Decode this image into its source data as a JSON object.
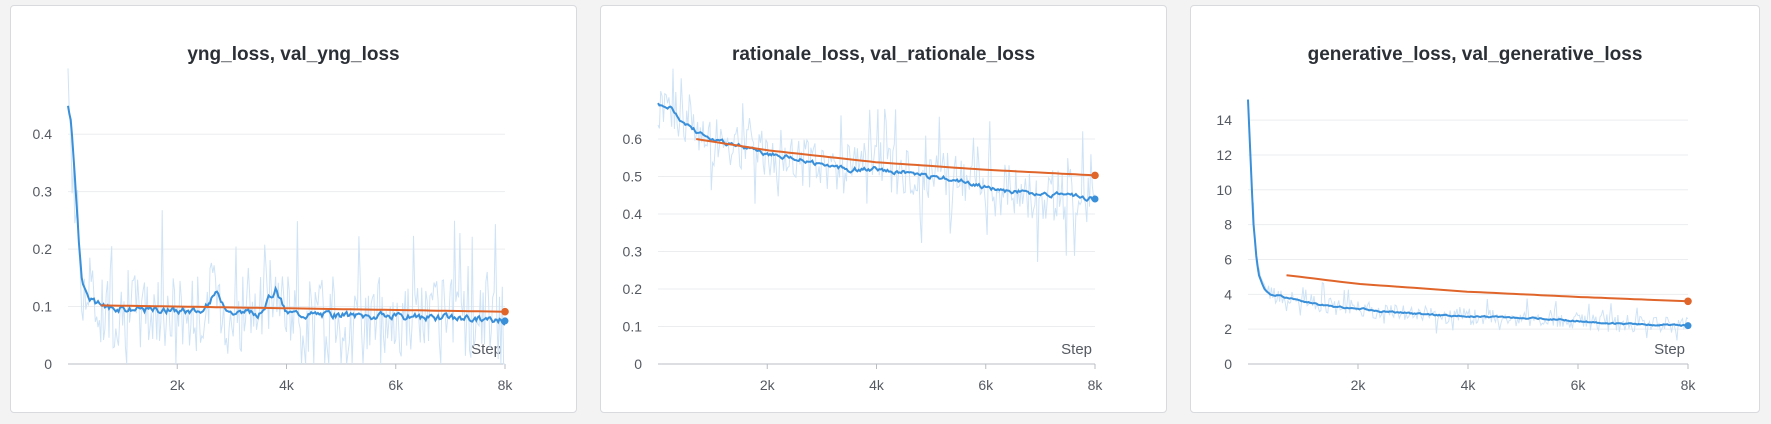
{
  "colors": {
    "train": "#3a8fd9",
    "train_raw": "#cfe3f6",
    "val": "#e0652b",
    "grid": "#ebedef",
    "axis": "#b9bdc3"
  },
  "chart_data": [
    {
      "type": "line",
      "title": "yng_loss, val_yng_loss",
      "xlabel": "Step",
      "xlim": [
        0,
        8000
      ],
      "ylim": [
        0,
        0.47
      ],
      "xticks": [
        {
          "v": 2000,
          "label": "2k"
        },
        {
          "v": 4000,
          "label": "4k"
        },
        {
          "v": 6000,
          "label": "6k"
        },
        {
          "v": 8000,
          "label": "8k"
        }
      ],
      "yticks": [
        {
          "v": 0,
          "label": "0"
        },
        {
          "v": 0.1,
          "label": "0.1"
        },
        {
          "v": 0.2,
          "label": "0.2"
        },
        {
          "v": 0.3,
          "label": "0.3"
        },
        {
          "v": 0.4,
          "label": "0.4"
        }
      ],
      "grid": true,
      "series": [
        {
          "role": "train",
          "x": [
            0,
            50,
            100,
            150,
            200,
            250,
            300,
            400,
            500,
            700,
            900,
            1200,
            1500,
            2000,
            2500,
            2700,
            3000,
            3500,
            3800,
            4000,
            4500,
            5000,
            5500,
            6000,
            6500,
            7000,
            7500,
            8000
          ],
          "y": [
            0.46,
            0.43,
            0.36,
            0.29,
            0.21,
            0.15,
            0.13,
            0.115,
            0.105,
            0.1,
            0.097,
            0.096,
            0.095,
            0.093,
            0.092,
            0.125,
            0.09,
            0.088,
            0.13,
            0.089,
            0.087,
            0.085,
            0.084,
            0.082,
            0.081,
            0.08,
            0.079,
            0.075
          ],
          "raw_spread": 0.07
        },
        {
          "role": "val",
          "x": [
            600,
            2000,
            4000,
            6000,
            8000
          ],
          "y": [
            0.102,
            0.1,
            0.097,
            0.094,
            0.091
          ]
        }
      ]
    },
    {
      "type": "line",
      "title": "rationale_loss, val_rationale_loss",
      "xlabel": "Step",
      "xlim": [
        0,
        8000
      ],
      "ylim": [
        0,
        0.72
      ],
      "xticks": [
        {
          "v": 2000,
          "label": "2k"
        },
        {
          "v": 4000,
          "label": "4k"
        },
        {
          "v": 6000,
          "label": "6k"
        },
        {
          "v": 8000,
          "label": "8k"
        }
      ],
      "yticks": [
        {
          "v": 0,
          "label": "0"
        },
        {
          "v": 0.1,
          "label": "0.1"
        },
        {
          "v": 0.2,
          "label": "0.2"
        },
        {
          "v": 0.3,
          "label": "0.3"
        },
        {
          "v": 0.4,
          "label": "0.4"
        },
        {
          "v": 0.5,
          "label": "0.5"
        },
        {
          "v": 0.6,
          "label": "0.6"
        }
      ],
      "grid": true,
      "series": [
        {
          "role": "train",
          "x": [
            0,
            200,
            400,
            700,
            1000,
            1500,
            2000,
            2500,
            3000,
            3500,
            4000,
            4500,
            5000,
            5500,
            6000,
            6500,
            7000,
            7500,
            8000
          ],
          "y": [
            0.69,
            0.69,
            0.65,
            0.62,
            0.6,
            0.58,
            0.56,
            0.55,
            0.53,
            0.52,
            0.52,
            0.51,
            0.5,
            0.49,
            0.47,
            0.46,
            0.45,
            0.45,
            0.44
          ],
          "raw_spread": 0.07
        },
        {
          "role": "val",
          "x": [
            700,
            2000,
            4000,
            6000,
            8000
          ],
          "y": [
            0.6,
            0.57,
            0.538,
            0.518,
            0.503
          ]
        }
      ]
    },
    {
      "type": "line",
      "title": "generative_loss, val_generative_loss",
      "xlabel": "Step",
      "xlim": [
        0,
        8000
      ],
      "ylim": [
        0,
        15.5
      ],
      "xticks": [
        {
          "v": 2000,
          "label": "2k"
        },
        {
          "v": 4000,
          "label": "4k"
        },
        {
          "v": 6000,
          "label": "6k"
        },
        {
          "v": 8000,
          "label": "8k"
        }
      ],
      "yticks": [
        {
          "v": 0,
          "label": "0"
        },
        {
          "v": 2,
          "label": "2"
        },
        {
          "v": 4,
          "label": "4"
        },
        {
          "v": 6,
          "label": "6"
        },
        {
          "v": 8,
          "label": "8"
        },
        {
          "v": 10,
          "label": "10"
        },
        {
          "v": 12,
          "label": "12"
        },
        {
          "v": 14,
          "label": "14"
        }
      ],
      "grid": true,
      "series": [
        {
          "role": "train",
          "x": [
            0,
            50,
            100,
            150,
            200,
            300,
            400,
            600,
            1000,
            1500,
            2000,
            2500,
            3000,
            3500,
            4000,
            4500,
            5000,
            5500,
            6000,
            6500,
            7000,
            7500,
            8000
          ],
          "y": [
            15.2,
            11.5,
            8.0,
            6.2,
            5.1,
            4.3,
            4.0,
            3.9,
            3.6,
            3.3,
            3.2,
            3.0,
            2.9,
            2.8,
            2.75,
            2.7,
            2.65,
            2.6,
            2.45,
            2.35,
            2.3,
            2.25,
            2.2
          ],
          "raw_spread": 0.5
        },
        {
          "role": "val",
          "x": [
            700,
            2000,
            4000,
            6000,
            8000
          ],
          "y": [
            5.1,
            4.6,
            4.15,
            3.85,
            3.6
          ]
        }
      ]
    }
  ]
}
